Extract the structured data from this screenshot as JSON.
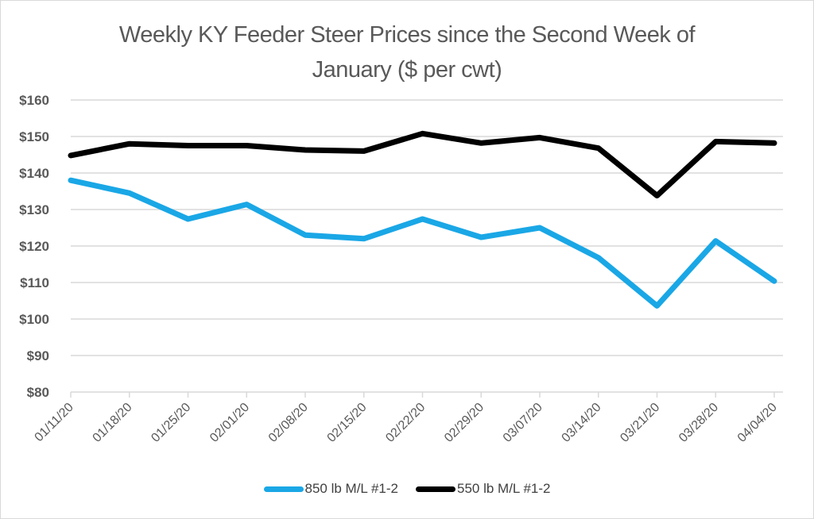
{
  "chart_data": {
    "type": "line",
    "title": "Weekly KY Feeder Steer Prices since the Second Week of January ($ per cwt)",
    "title_lines": [
      "Weekly KY Feeder Steer Prices since the Second Week of",
      "January ($ per cwt)"
    ],
    "xlabel": "",
    "ylabel": "",
    "categories": [
      "01/11/20",
      "01/18/20",
      "01/25/20",
      "02/01/20",
      "02/08/20",
      "02/15/20",
      "02/22/20",
      "02/29/20",
      "03/07/20",
      "03/14/20",
      "03/21/20",
      "03/28/20",
      "04/04/20"
    ],
    "ylim": [
      80,
      160
    ],
    "ytick_values": [
      80,
      90,
      100,
      110,
      120,
      130,
      140,
      150,
      160
    ],
    "ytick_labels": [
      "$80",
      "$90",
      "$100",
      "$110",
      "$120",
      "$130",
      "$140",
      "$150",
      "$160"
    ],
    "grid": true,
    "legend_position": "bottom",
    "series": [
      {
        "name": "850 lb M/L #1-2",
        "color": "#1aa7e6",
        "values": [
          138.0,
          134.5,
          127.4,
          131.4,
          123.0,
          122.0,
          127.4,
          122.4,
          125.0,
          116.8,
          103.6,
          121.4,
          110.4
        ]
      },
      {
        "name": "550 lb M/L #1-2",
        "color": "#000000",
        "values": [
          144.8,
          148.0,
          147.5,
          147.5,
          146.3,
          146.0,
          150.8,
          148.2,
          149.7,
          146.8,
          133.8,
          148.6,
          148.2
        ]
      }
    ]
  }
}
